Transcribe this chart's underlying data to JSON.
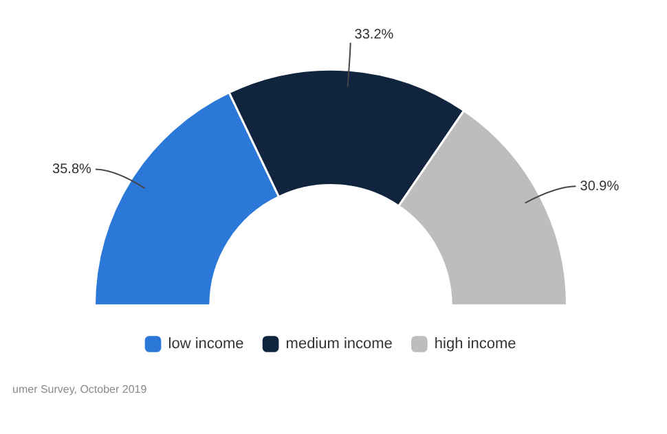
{
  "chart_data": {
    "type": "donut",
    "categories": [
      "low income",
      "medium income",
      "high income"
    ],
    "values": [
      35.8,
      33.2,
      30.9
    ],
    "colors": [
      "#2b78d8",
      "#10253d",
      "#bdbdbd"
    ],
    "value_labels": [
      "35.8%",
      "33.2%",
      "30.9%"
    ],
    "legend": "bottom",
    "annotations": [
      "umer Survey, October 2019"
    ]
  }
}
